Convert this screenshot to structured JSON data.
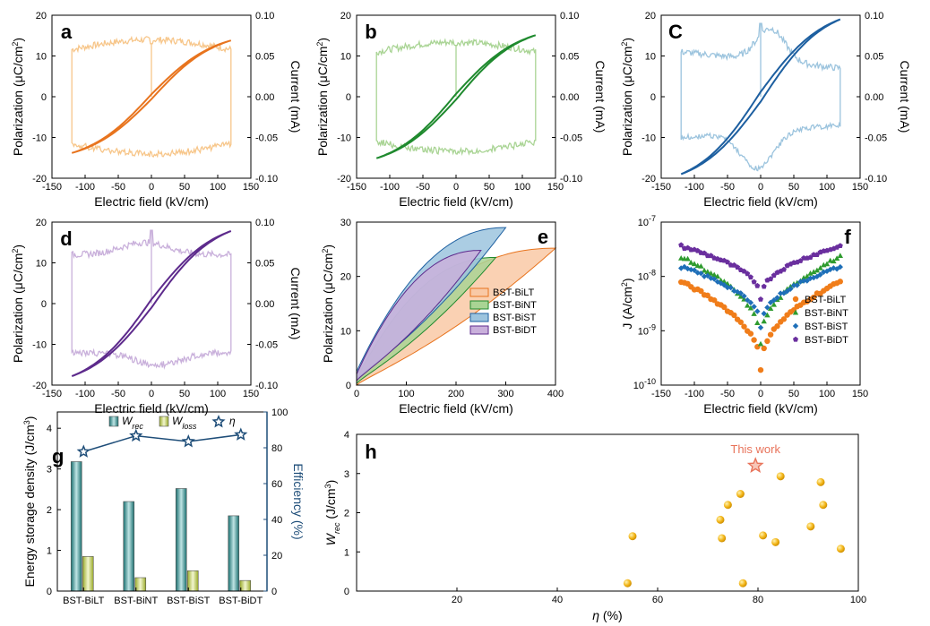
{
  "figure": "Eight-panel figure (a–h) of dielectric and energy storage properties",
  "chart_data": [
    {
      "id": "a",
      "type": "line",
      "panel_label": "a",
      "xlabel": "Electric field (kV/cm)",
      "ylabel": "Polarization (μC/cm²)",
      "y2label": "Current (mA)",
      "xlim": [
        -150,
        150
      ],
      "xticks": [
        -150,
        -100,
        -50,
        0,
        50,
        100,
        150
      ],
      "ylim": [
        -20,
        20
      ],
      "yticks": [
        -20,
        -10,
        0,
        10,
        20
      ],
      "y2lim": [
        -0.1,
        0.1
      ],
      "y2ticks": [
        "-0.10",
        "-0.05",
        "0.00",
        "0.05",
        "0.10"
      ],
      "pe_color": "#e8741e",
      "current_color": "#f7c68a",
      "pmax": 13.8,
      "emax": 120,
      "remnant": 0.6,
      "current_plateau": 0.058,
      "current_peak": 0.065
    },
    {
      "id": "b",
      "type": "line",
      "panel_label": "b",
      "xlabel": "Electric field (kV/cm)",
      "ylabel": "Polarization (μC/cm²)",
      "y2label": "Current (mA)",
      "xlim": [
        -150,
        150
      ],
      "xticks": [
        -150,
        -100,
        -50,
        0,
        50,
        100,
        150
      ],
      "ylim": [
        -20,
        20
      ],
      "yticks": [
        -20,
        -10,
        0,
        10,
        20
      ],
      "y2lim": [
        -0.1,
        0.1
      ],
      "y2ticks": [
        "-0.10",
        "-0.05",
        "0.00",
        "0.05",
        "0.10"
      ],
      "pe_color": "#1f8a2e",
      "current_color": "#a9d494",
      "pmax": 15.1,
      "emax": 120,
      "remnant": 0.7,
      "current_plateau": 0.055,
      "current_peak": 0.063
    },
    {
      "id": "c",
      "type": "line",
      "panel_label": "C",
      "xlabel": "Electric field (kV/cm)",
      "ylabel": "Polarization (μC/cm²)",
      "y2label": "Current (mA)",
      "xlim": [
        -150,
        150
      ],
      "xticks": [
        -150,
        -100,
        -50,
        0,
        50,
        100,
        150
      ],
      "ylim": [
        -20,
        20
      ],
      "yticks": [
        -20,
        -10,
        0,
        10,
        20
      ],
      "y2lim": [
        -0.1,
        0.1
      ],
      "y2ticks": [
        "-0.10",
        "-0.05",
        "0.00",
        "0.05",
        "0.10"
      ],
      "pe_color": "#1d5fa0",
      "current_color": "#9cc4de",
      "pmax": 19.0,
      "emax": 120,
      "remnant": 1.2,
      "current_plateau": 0.035,
      "current_peak": 0.09
    },
    {
      "id": "d",
      "type": "line",
      "panel_label": "d",
      "xlabel": "Electric field (kV/cm)",
      "ylabel": "Polarization (μC/cm²)",
      "y2label": "Current (mA)",
      "xlim": [
        -150,
        150
      ],
      "xticks": [
        -150,
        -100,
        -50,
        0,
        50,
        100,
        150
      ],
      "ylim": [
        -20,
        20
      ],
      "yticks": [
        -20,
        -10,
        0,
        10,
        20
      ],
      "y2lim": [
        -0.1,
        0.1
      ],
      "y2ticks": [
        "-0.10",
        "-0.05",
        "0.00",
        "0.05",
        "0.10"
      ],
      "pe_color": "#5d2a8c",
      "current_color": "#c9b0db",
      "pmax": 17.8,
      "emax": 120,
      "remnant": 1.0,
      "current_plateau": 0.06,
      "current_peak": 0.09
    },
    {
      "id": "e",
      "type": "area",
      "panel_label": "e",
      "xlabel": "Electric field (kV/cm)",
      "ylabel": "Polarization (μC/cm²)",
      "xlim": [
        0,
        400
      ],
      "xticks": [
        0,
        100,
        200,
        300,
        400
      ],
      "ylim": [
        0,
        30
      ],
      "yticks": [
        0,
        10,
        20,
        30
      ],
      "legend_position": "bottom-right",
      "series": [
        {
          "name": "BST-BiLT",
          "emax": 400,
          "pmax": 25.2,
          "lower_at_0": 0.0,
          "upper_at_0": 0.8,
          "color": "#e8741e",
          "fill": "#f9c9a6"
        },
        {
          "name": "BST-BiNT",
          "emax": 280,
          "pmax": 23.5,
          "lower_at_0": 0.3,
          "upper_at_0": 1.2,
          "color": "#1f8a2e",
          "fill": "#a9d494"
        },
        {
          "name": "BST-BiST",
          "emax": 300,
          "pmax": 29.0,
          "lower_at_0": 1.0,
          "upper_at_0": 2.5,
          "color": "#1d5fa0",
          "fill": "#9cc4de"
        },
        {
          "name": "BST-BiDT",
          "emax": 250,
          "pmax": 24.8,
          "lower_at_0": 0.8,
          "upper_at_0": 2.0,
          "color": "#5d2a8c",
          "fill": "#c9b0db"
        }
      ]
    },
    {
      "id": "f",
      "type": "scatter",
      "panel_label": "f",
      "xlabel": "Electric field (kV/cm)",
      "ylabel": "J (A/cm²)",
      "xlim": [
        -150,
        150
      ],
      "xticks": [
        -150,
        -100,
        -50,
        0,
        50,
        100,
        150
      ],
      "ylog": true,
      "ylim_exp": [
        -10,
        -7
      ],
      "yticks_exp": [
        -10,
        -9,
        -8,
        -7
      ],
      "legend_position": "bottom-right",
      "series": [
        {
          "name": "BST-BiLT",
          "marker": "circle",
          "color": "#f07d1a",
          "edge": 8e-09,
          "center": 2e-10
        },
        {
          "name": "BST-BiNT",
          "marker": "triangle",
          "color": "#2e9b2e",
          "edge": 2.3e-08,
          "center": 6e-10
        },
        {
          "name": "BST-BiST",
          "marker": "diamond",
          "color": "#1e6fb8",
          "edge": 1.5e-08,
          "center": 1.2e-09
        },
        {
          "name": "BST-BiDT",
          "marker": "pentagon",
          "color": "#6a2f9e",
          "edge": 3.6e-08,
          "center": 4e-09
        }
      ]
    },
    {
      "id": "g",
      "type": "bar",
      "panel_label": "g",
      "ylabel": "Energy storage density (J/cm³)",
      "y2label": "Efficiency (%)",
      "categories": [
        "BST-BiLT",
        "BST-BiNT",
        "BST-BiST",
        "BST-BiDT"
      ],
      "ylim": [
        0,
        4.4
      ],
      "yticks": [
        0,
        1,
        2,
        3,
        4
      ],
      "y2lim": [
        0,
        100
      ],
      "y2ticks": [
        0,
        20,
        40,
        60,
        80,
        100
      ],
      "legend_position": "top",
      "series": [
        {
          "name": "W_rec",
          "label_main": "W",
          "label_sub": "rec",
          "values": [
            3.18,
            2.2,
            2.52,
            1.85
          ],
          "color": "#1f8f8f"
        },
        {
          "name": "W_loss",
          "label_main": "W",
          "label_sub": "loss",
          "values": [
            0.85,
            0.33,
            0.5,
            0.26
          ],
          "color": "#b8c94a"
        },
        {
          "name": "η",
          "label_main": "η",
          "label_sub": "",
          "values": [
            77.8,
            86.7,
            83.5,
            87.3
          ],
          "color": "#1f4e79",
          "axis": "right"
        }
      ]
    },
    {
      "id": "h",
      "type": "scatter",
      "panel_label": "h",
      "xlabel": "η (%)",
      "ylabel": "W_rec (J/cm³)",
      "xlim": [
        0,
        100
      ],
      "xticks": [
        20,
        40,
        60,
        80,
        100
      ],
      "ylim": [
        0,
        4
      ],
      "yticks": [
        0,
        1,
        2,
        3,
        4
      ],
      "annotation": "This work",
      "this_work": {
        "x": 79.5,
        "y": 3.2
      },
      "points": [
        {
          "x": 54,
          "y": 0.2
        },
        {
          "x": 55,
          "y": 1.4
        },
        {
          "x": 72.5,
          "y": 1.82
        },
        {
          "x": 72.8,
          "y": 1.35
        },
        {
          "x": 74,
          "y": 2.2
        },
        {
          "x": 76.5,
          "y": 2.48
        },
        {
          "x": 77,
          "y": 0.2
        },
        {
          "x": 81,
          "y": 1.42
        },
        {
          "x": 83.5,
          "y": 1.25
        },
        {
          "x": 84.5,
          "y": 2.93
        },
        {
          "x": 90.5,
          "y": 1.65
        },
        {
          "x": 92.5,
          "y": 2.78
        },
        {
          "x": 93,
          "y": 2.2
        },
        {
          "x": 96.5,
          "y": 1.08
        }
      ],
      "point_color": "#f2b416",
      "star_color": "#e8735a"
    }
  ]
}
